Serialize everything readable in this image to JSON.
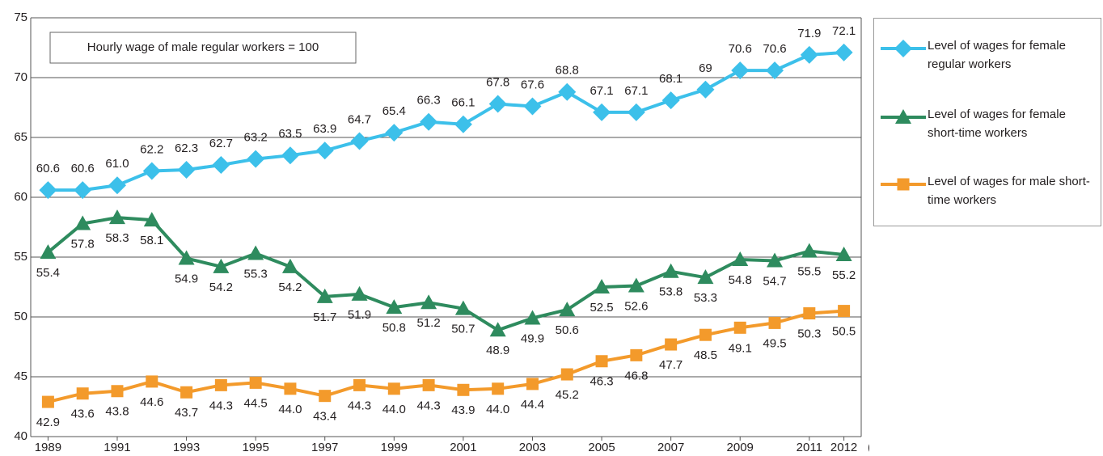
{
  "chart_data": {
    "type": "line",
    "annotation": "Hourly wage of male regular workers = 100",
    "x_label": "(Year)",
    "x": [
      1989,
      1990,
      1991,
      1992,
      1993,
      1994,
      1995,
      1996,
      1997,
      1998,
      1999,
      2000,
      2001,
      2002,
      2003,
      2004,
      2005,
      2006,
      2007,
      2008,
      2009,
      2010,
      2011,
      2012
    ],
    "xlim": [
      1988.5,
      2012.5
    ],
    "xticks": [
      1989,
      1991,
      1993,
      1995,
      1997,
      1999,
      2001,
      2003,
      2005,
      2007,
      2009,
      2011,
      2012
    ],
    "ylim": [
      40,
      75
    ],
    "yticks": [
      40,
      45,
      50,
      55,
      60,
      65,
      70,
      75
    ],
    "grid": true,
    "series": [
      {
        "name": "Level of wages for female regular workers",
        "color": "#3cc0ea",
        "marker": "diamond",
        "values": [
          60.6,
          60.6,
          61.0,
          62.2,
          62.3,
          62.7,
          63.2,
          63.5,
          63.9,
          64.7,
          65.4,
          66.3,
          66.1,
          67.8,
          67.6,
          68.8,
          67.1,
          67.1,
          68.1,
          69,
          70.6,
          70.6,
          71.9,
          72.1
        ],
        "value_labels": [
          "60.6",
          "60.6",
          "61.0",
          "62.2",
          "62.3",
          "62.7",
          "63.2",
          "63.5",
          "63.9",
          "64.7",
          "65.4",
          "66.3",
          "66.1",
          "67.8",
          "67.6",
          "68.8",
          "67.1",
          "67.1",
          "68.1",
          "69",
          "70.6",
          "70.6",
          "71.9",
          "72.1"
        ]
      },
      {
        "name": "Level of wages for female short-time workers",
        "color": "#2e8b5e",
        "marker": "triangle",
        "values": [
          55.4,
          57.8,
          58.3,
          58.1,
          54.9,
          54.2,
          55.3,
          54.2,
          51.7,
          51.9,
          50.8,
          51.2,
          50.7,
          48.9,
          49.9,
          50.6,
          52.5,
          52.6,
          53.8,
          53.3,
          54.8,
          54.7,
          55.5,
          55.2
        ],
        "value_labels": [
          "55.4",
          "57.8",
          "58.3",
          "58.1",
          "54.9",
          "54.2",
          "55.3",
          "54.2",
          "51.7",
          "51.9",
          "50.8",
          "51.2",
          "50.7",
          "48.9",
          "49.9",
          "50.6",
          "52.5",
          "52.6",
          "53.8",
          "53.3",
          "54.8",
          "54.7",
          "55.5",
          "55.2"
        ]
      },
      {
        "name": "Level of wages for male short-time workers",
        "color": "#f39a2b",
        "marker": "square",
        "values": [
          42.9,
          43.6,
          43.8,
          44.6,
          43.7,
          44.3,
          44.5,
          44.0,
          43.4,
          44.3,
          44.0,
          44.3,
          43.9,
          44.0,
          44.4,
          45.2,
          46.3,
          46.8,
          47.7,
          48.5,
          49.1,
          49.5,
          50.3,
          50.5
        ],
        "value_labels": [
          "42.9",
          "43.6",
          "43.8",
          "44.6",
          "43.7",
          "44.3",
          "44.5",
          "44.0",
          "43.4",
          "44.3",
          "44.0",
          "44.3",
          "43.9",
          "44.0",
          "44.4",
          "45.2",
          "46.3",
          "46.8",
          "47.7",
          "48.5",
          "49.1",
          "49.5",
          "50.3",
          "50.5"
        ]
      }
    ]
  }
}
